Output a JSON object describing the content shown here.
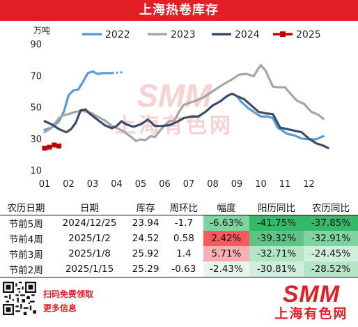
{
  "title": "上海热卷库存",
  "chart_data": {
    "type": "line",
    "unit_label": "万吨",
    "ylim": [
      10,
      90
    ],
    "yticks": [
      10,
      30,
      50,
      70,
      90
    ],
    "xlim": [
      1,
      13
    ],
    "xticks": [
      "01",
      "02",
      "03",
      "04",
      "05",
      "06",
      "07",
      "08",
      "09",
      "10",
      "11",
      "12"
    ],
    "legend_position": "top",
    "watermark": "SMM 上海有色网",
    "series": [
      {
        "name": "2022",
        "color": "#5b9bd5",
        "points": [
          [
            1.0,
            35.5
          ],
          [
            1.3,
            37
          ],
          [
            1.6,
            41
          ],
          [
            1.8,
            47
          ],
          [
            2.0,
            57.5
          ],
          [
            2.2,
            60.5
          ],
          [
            2.4,
            61
          ],
          [
            2.6,
            66
          ],
          [
            2.8,
            71.5
          ],
          [
            3.0,
            72.5
          ],
          [
            3.2,
            71
          ],
          [
            3.4,
            71.5
          ],
          [
            3.6,
            71.5
          ],
          [
            3.8,
            71.5
          ]
        ],
        "dashed_points": [
          [
            3.8,
            71.5
          ],
          [
            4.0,
            71.8
          ],
          [
            4.3,
            72
          ]
        ]
      },
      {
        "name": "2022",
        "color": "#5b9bd5",
        "points": [
          [
            9.0,
            57
          ],
          [
            9.2,
            53
          ],
          [
            9.5,
            49
          ],
          [
            9.8,
            46
          ],
          [
            10.0,
            44
          ],
          [
            10.3,
            44
          ],
          [
            10.5,
            43
          ],
          [
            10.7,
            37
          ],
          [
            10.9,
            35
          ],
          [
            11.1,
            33
          ],
          [
            11.4,
            32
          ],
          [
            11.7,
            30
          ],
          [
            12.0,
            29.5
          ],
          [
            12.3,
            29.5
          ],
          [
            12.5,
            31
          ],
          [
            12.6,
            31.5
          ]
        ]
      },
      {
        "name": "2023",
        "color": "#a5a5a5",
        "points": [
          [
            1.0,
            34
          ],
          [
            1.3,
            37
          ],
          [
            1.6,
            43
          ],
          [
            1.8,
            45
          ],
          [
            2.0,
            45.5
          ],
          [
            2.3,
            47
          ],
          [
            2.6,
            47.5
          ],
          [
            2.9,
            46.5
          ],
          [
            3.2,
            44
          ],
          [
            3.5,
            41.5
          ],
          [
            3.8,
            38
          ],
          [
            4.1,
            36
          ],
          [
            4.3,
            34.5
          ],
          [
            4.6,
            31
          ],
          [
            4.8,
            28.5
          ],
          [
            5.0,
            29.5
          ],
          [
            5.2,
            29
          ],
          [
            5.4,
            31.5
          ],
          [
            5.6,
            31
          ],
          [
            5.8,
            35
          ],
          [
            6.0,
            38.5
          ],
          [
            6.2,
            41
          ],
          [
            6.4,
            41.5
          ],
          [
            6.6,
            47
          ],
          [
            6.8,
            51.5
          ],
          [
            7.0,
            52.5
          ],
          [
            7.3,
            54
          ],
          [
            7.6,
            56
          ],
          [
            7.9,
            59
          ],
          [
            8.2,
            62
          ],
          [
            8.5,
            65
          ],
          [
            8.8,
            67.5
          ],
          [
            9.1,
            70.5
          ],
          [
            9.4,
            71
          ],
          [
            9.7,
            69.5
          ],
          [
            9.9,
            74.5
          ],
          [
            10.0,
            76.5
          ],
          [
            10.2,
            73
          ],
          [
            10.5,
            63
          ],
          [
            10.7,
            62.5
          ],
          [
            11.0,
            62.5
          ],
          [
            11.2,
            59
          ],
          [
            11.5,
            54
          ],
          [
            11.8,
            52
          ],
          [
            12.1,
            47
          ],
          [
            12.4,
            45
          ],
          [
            12.6,
            42.5
          ]
        ]
      },
      {
        "name": "2024",
        "color": "#3b4d68",
        "points": [
          [
            1.0,
            41
          ],
          [
            1.3,
            39
          ],
          [
            1.6,
            36
          ],
          [
            1.9,
            34
          ],
          [
            2.1,
            36
          ],
          [
            2.3,
            40
          ],
          [
            2.5,
            48
          ],
          [
            2.7,
            48.5
          ],
          [
            2.9,
            45.5
          ],
          [
            3.2,
            42
          ],
          [
            3.5,
            38.5
          ],
          [
            3.8,
            36.5
          ],
          [
            4.0,
            38
          ],
          [
            4.2,
            41
          ],
          [
            4.4,
            39
          ],
          [
            4.7,
            37.5
          ],
          [
            5.0,
            39
          ],
          [
            5.3,
            42
          ],
          [
            5.6,
            38
          ],
          [
            5.9,
            38
          ],
          [
            6.2,
            38.5
          ],
          [
            6.5,
            40.5
          ],
          [
            6.8,
            43
          ],
          [
            7.1,
            44
          ],
          [
            7.4,
            44
          ],
          [
            7.7,
            47
          ],
          [
            8.0,
            51
          ],
          [
            8.3,
            53.5
          ],
          [
            8.6,
            57
          ],
          [
            8.8,
            58.5
          ],
          [
            9.0,
            57
          ],
          [
            9.3,
            55
          ],
          [
            9.6,
            51
          ],
          [
            9.9,
            47
          ],
          [
            10.2,
            46
          ],
          [
            10.5,
            45.5
          ],
          [
            10.8,
            37
          ],
          [
            11.1,
            36
          ],
          [
            11.4,
            35
          ],
          [
            11.7,
            34
          ],
          [
            12.0,
            30
          ],
          [
            12.3,
            27
          ],
          [
            12.6,
            25.5
          ],
          [
            12.8,
            24
          ]
        ]
      },
      {
        "name": "2025",
        "color": "#c00000",
        "points": [
          [
            1.0,
            23.94
          ],
          [
            1.2,
            24.52
          ],
          [
            1.4,
            25.92
          ],
          [
            1.6,
            25.29
          ]
        ]
      }
    ]
  },
  "table": {
    "headers": [
      "农历日期",
      "日期",
      "库存",
      "周环比",
      "幅度",
      "阳历同比",
      "农历同比"
    ],
    "rows": [
      [
        "节前5周",
        "2024/12/25",
        "23.94",
        "-1.7",
        "-6.63%",
        "-41.75%",
        "-37.85%"
      ],
      [
        "节前4周",
        "2025/1/2",
        "24.52",
        "0.58",
        "2.42%",
        "-39.32%",
        "-32.91%"
      ],
      [
        "节前3周",
        "2025/1/8",
        "25.92",
        "1.4",
        "5.71%",
        "-32.71%",
        "-24.45%"
      ],
      [
        "节前2周",
        "2025/1/15",
        "25.29",
        "-0.63",
        "-2.43%",
        "-30.81%",
        "-28.52%"
      ]
    ],
    "amplitude_colors": [
      "#7ed3a0",
      "#f7595f",
      "#f9b0b3",
      "#e6f6ec"
    ],
    "yoy_colors": [
      "#34b969",
      "#5fc587",
      "#b4e5c6",
      "#cfeedb"
    ],
    "lunar_colors": [
      "#34b969",
      "#7ed3a0",
      "#cfeedb",
      "#b4e5c6"
    ]
  },
  "footer": {
    "promo_line1": "扫码免费领取",
    "promo_line2": "更多信息",
    "logo_top": "SMM",
    "logo_bottom": "上海有色网"
  }
}
